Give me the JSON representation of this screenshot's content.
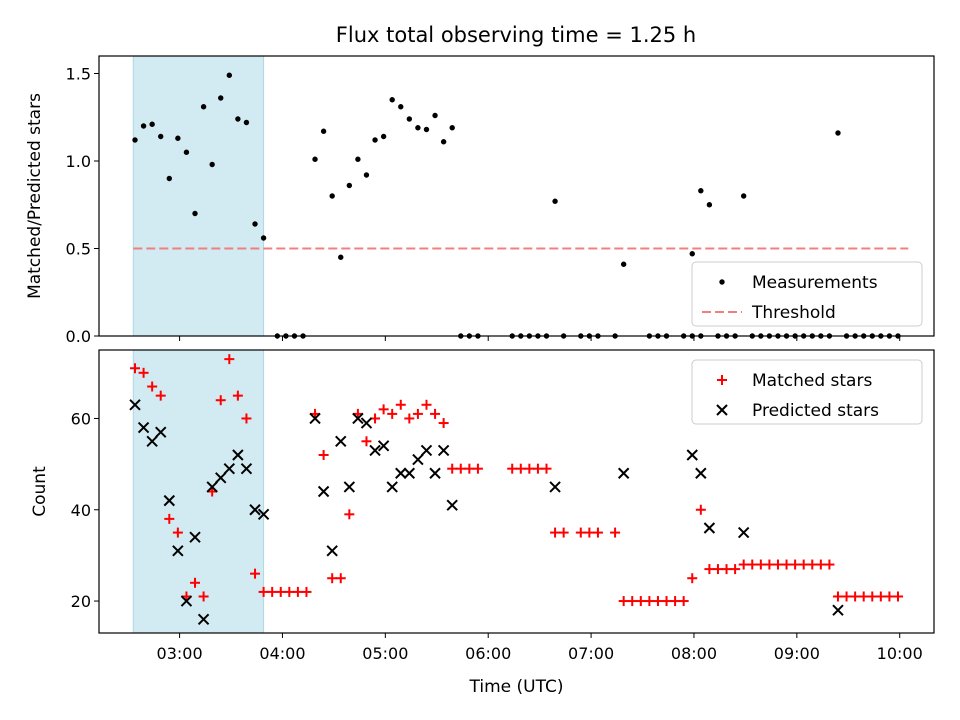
{
  "title": "Flux total observing time = 1.25 h",
  "colors": {
    "measurement": "#000000",
    "threshold": "#f08080",
    "matched": "#ff0000",
    "predicted": "#000000",
    "shade": "#add8e6"
  },
  "chart_data": [
    {
      "type": "scatter",
      "panel": "top",
      "xlabel": "",
      "ylabel": "Matched/Predicted stars",
      "xlim": [
        "02:13",
        "10:20"
      ],
      "ylim": [
        0.0,
        1.6
      ],
      "yticks": [
        "0.0",
        "0.5",
        "1.0",
        "1.5"
      ],
      "shaded_region": [
        "02:33",
        "03:49"
      ],
      "legend": {
        "placement": "lower-right",
        "entries": [
          "Measurements",
          "Threshold"
        ]
      },
      "series": [
        {
          "name": "Measurements",
          "marker": "dot",
          "points": [
            [
              "02:34",
              1.12
            ],
            [
              "02:39",
              1.2
            ],
            [
              "02:44",
              1.21
            ],
            [
              "02:49",
              1.14
            ],
            [
              "02:54",
              0.9
            ],
            [
              "02:59",
              1.13
            ],
            [
              "03:04",
              1.05
            ],
            [
              "03:09",
              0.7
            ],
            [
              "03:14",
              1.31
            ],
            [
              "03:19",
              0.98
            ],
            [
              "03:24",
              1.36
            ],
            [
              "03:29",
              1.49
            ],
            [
              "03:34",
              1.24
            ],
            [
              "03:39",
              1.22
            ],
            [
              "03:44",
              0.64
            ],
            [
              "03:49",
              0.56
            ],
            [
              "03:57",
              0
            ],
            [
              "04:02",
              0
            ],
            [
              "04:07",
              0
            ],
            [
              "04:12",
              0
            ],
            [
              "04:19",
              1.01
            ],
            [
              "04:24",
              1.17
            ],
            [
              "04:29",
              0.8
            ],
            [
              "04:34",
              0.45
            ],
            [
              "04:39",
              0.86
            ],
            [
              "04:44",
              1.01
            ],
            [
              "04:49",
              0.92
            ],
            [
              "04:54",
              1.12
            ],
            [
              "04:59",
              1.14
            ],
            [
              "05:04",
              1.35
            ],
            [
              "05:09",
              1.31
            ],
            [
              "05:14",
              1.24
            ],
            [
              "05:19",
              1.19
            ],
            [
              "05:24",
              1.18
            ],
            [
              "05:29",
              1.26
            ],
            [
              "05:34",
              1.11
            ],
            [
              "05:39",
              1.19
            ],
            [
              "05:44",
              0
            ],
            [
              "05:49",
              0
            ],
            [
              "05:54",
              0
            ],
            [
              "06:14",
              0
            ],
            [
              "06:19",
              0
            ],
            [
              "06:24",
              0
            ],
            [
              "06:29",
              0
            ],
            [
              "06:34",
              0
            ],
            [
              "06:39",
              0.77
            ],
            [
              "06:44",
              0
            ],
            [
              "06:54",
              0
            ],
            [
              "06:59",
              0
            ],
            [
              "07:04",
              0
            ],
            [
              "07:14",
              0
            ],
            [
              "07:19",
              0.41
            ],
            [
              "07:34",
              0
            ],
            [
              "07:39",
              0
            ],
            [
              "07:44",
              0
            ],
            [
              "07:54",
              0
            ],
            [
              "07:59",
              0
            ],
            [
              "08:04",
              0
            ],
            [
              "07:59",
              0.47
            ],
            [
              "08:04",
              0.83
            ],
            [
              "08:09",
              0.75
            ],
            [
              "08:14",
              0
            ],
            [
              "08:19",
              0
            ],
            [
              "08:24",
              0
            ],
            [
              "08:29",
              0.8
            ],
            [
              "08:34",
              0
            ],
            [
              "08:39",
              0
            ],
            [
              "08:44",
              0
            ],
            [
              "08:49",
              0
            ],
            [
              "08:54",
              0
            ],
            [
              "08:59",
              0
            ],
            [
              "09:04",
              0
            ],
            [
              "09:09",
              0
            ],
            [
              "09:14",
              0
            ],
            [
              "09:19",
              0
            ],
            [
              "09:24",
              1.16
            ],
            [
              "09:29",
              0
            ],
            [
              "09:34",
              0
            ],
            [
              "09:39",
              0
            ],
            [
              "09:44",
              0
            ],
            [
              "09:49",
              0
            ],
            [
              "09:54",
              0
            ],
            [
              "09:59",
              0
            ]
          ]
        },
        {
          "name": "Threshold",
          "marker": "dashed-line",
          "points": [
            [
              "02:33",
              0.5
            ],
            [
              "10:05",
              0.5
            ]
          ]
        }
      ]
    },
    {
      "type": "scatter",
      "panel": "bottom",
      "xlabel": "Time (UTC)",
      "ylabel": "Count",
      "xlim": [
        "02:13",
        "10:20"
      ],
      "ylim": [
        13,
        75
      ],
      "yticks": [
        "20",
        "40",
        "60"
      ],
      "xticks": [
        "03:00",
        "04:00",
        "05:00",
        "06:00",
        "07:00",
        "08:00",
        "09:00",
        "10:00"
      ],
      "shaded_region": [
        "02:33",
        "03:49"
      ],
      "legend": {
        "placement": "upper-right",
        "entries": [
          "Matched stars",
          "Predicted stars"
        ]
      },
      "series": [
        {
          "name": "Matched stars",
          "marker": "plus",
          "points": [
            [
              "02:34",
              71
            ],
            [
              "02:39",
              70
            ],
            [
              "02:44",
              67
            ],
            [
              "02:49",
              65
            ],
            [
              "02:54",
              38
            ],
            [
              "02:59",
              35
            ],
            [
              "03:04",
              21
            ],
            [
              "03:09",
              24
            ],
            [
              "03:14",
              21
            ],
            [
              "03:19",
              44
            ],
            [
              "03:24",
              64
            ],
            [
              "03:29",
              73
            ],
            [
              "03:34",
              65
            ],
            [
              "03:39",
              60
            ],
            [
              "03:44",
              26
            ],
            [
              "03:49",
              22
            ],
            [
              "03:54",
              22
            ],
            [
              "03:59",
              22
            ],
            [
              "04:04",
              22
            ],
            [
              "04:09",
              22
            ],
            [
              "04:14",
              22
            ],
            [
              "04:19",
              61
            ],
            [
              "04:24",
              52
            ],
            [
              "04:29",
              25
            ],
            [
              "04:34",
              25
            ],
            [
              "04:39",
              39
            ],
            [
              "04:44",
              61
            ],
            [
              "04:49",
              55
            ],
            [
              "04:54",
              60
            ],
            [
              "04:59",
              62
            ],
            [
              "05:04",
              61
            ],
            [
              "05:09",
              63
            ],
            [
              "05:14",
              60
            ],
            [
              "05:19",
              61
            ],
            [
              "05:24",
              63
            ],
            [
              "05:29",
              61
            ],
            [
              "05:34",
              59
            ],
            [
              "05:39",
              49
            ],
            [
              "05:44",
              49
            ],
            [
              "05:49",
              49
            ],
            [
              "05:54",
              49
            ],
            [
              "06:14",
              49
            ],
            [
              "06:19",
              49
            ],
            [
              "06:24",
              49
            ],
            [
              "06:29",
              49
            ],
            [
              "06:34",
              49
            ],
            [
              "06:39",
              35
            ],
            [
              "06:44",
              35
            ],
            [
              "06:54",
              35
            ],
            [
              "06:59",
              35
            ],
            [
              "07:04",
              35
            ],
            [
              "07:14",
              35
            ],
            [
              "07:19",
              20
            ],
            [
              "07:24",
              20
            ],
            [
              "07:29",
              20
            ],
            [
              "07:34",
              20
            ],
            [
              "07:39",
              20
            ],
            [
              "07:44",
              20
            ],
            [
              "07:49",
              20
            ],
            [
              "07:54",
              20
            ],
            [
              "07:59",
              25
            ],
            [
              "08:04",
              40
            ],
            [
              "08:09",
              27
            ],
            [
              "08:14",
              27
            ],
            [
              "08:19",
              27
            ],
            [
              "08:24",
              27
            ],
            [
              "08:29",
              28
            ],
            [
              "08:34",
              28
            ],
            [
              "08:39",
              28
            ],
            [
              "08:44",
              28
            ],
            [
              "08:49",
              28
            ],
            [
              "08:54",
              28
            ],
            [
              "08:59",
              28
            ],
            [
              "09:04",
              28
            ],
            [
              "09:09",
              28
            ],
            [
              "09:14",
              28
            ],
            [
              "09:19",
              28
            ],
            [
              "09:24",
              21
            ],
            [
              "09:29",
              21
            ],
            [
              "09:34",
              21
            ],
            [
              "09:39",
              21
            ],
            [
              "09:44",
              21
            ],
            [
              "09:49",
              21
            ],
            [
              "09:54",
              21
            ],
            [
              "09:59",
              21
            ]
          ]
        },
        {
          "name": "Predicted stars",
          "marker": "x",
          "points": [
            [
              "02:34",
              63
            ],
            [
              "02:39",
              58
            ],
            [
              "02:44",
              55
            ],
            [
              "02:49",
              57
            ],
            [
              "02:54",
              42
            ],
            [
              "02:59",
              31
            ],
            [
              "03:04",
              20
            ],
            [
              "03:09",
              34
            ],
            [
              "03:14",
              16
            ],
            [
              "03:19",
              45
            ],
            [
              "03:24",
              47
            ],
            [
              "03:29",
              49
            ],
            [
              "03:34",
              52
            ],
            [
              "03:39",
              49
            ],
            [
              "03:44",
              40
            ],
            [
              "03:49",
              39
            ],
            [
              "04:19",
              60
            ],
            [
              "04:24",
              44
            ],
            [
              "04:29",
              31
            ],
            [
              "04:34",
              55
            ],
            [
              "04:39",
              45
            ],
            [
              "04:44",
              60
            ],
            [
              "04:49",
              59
            ],
            [
              "04:54",
              53
            ],
            [
              "04:59",
              54
            ],
            [
              "05:04",
              45
            ],
            [
              "05:09",
              48
            ],
            [
              "05:14",
              48
            ],
            [
              "05:19",
              51
            ],
            [
              "05:24",
              53
            ],
            [
              "05:29",
              48
            ],
            [
              "05:34",
              53
            ],
            [
              "05:39",
              41
            ],
            [
              "06:39",
              45
            ],
            [
              "07:19",
              48
            ],
            [
              "07:59",
              52
            ],
            [
              "08:04",
              48
            ],
            [
              "08:09",
              36
            ],
            [
              "08:29",
              35
            ],
            [
              "09:24",
              18
            ]
          ]
        }
      ]
    }
  ]
}
